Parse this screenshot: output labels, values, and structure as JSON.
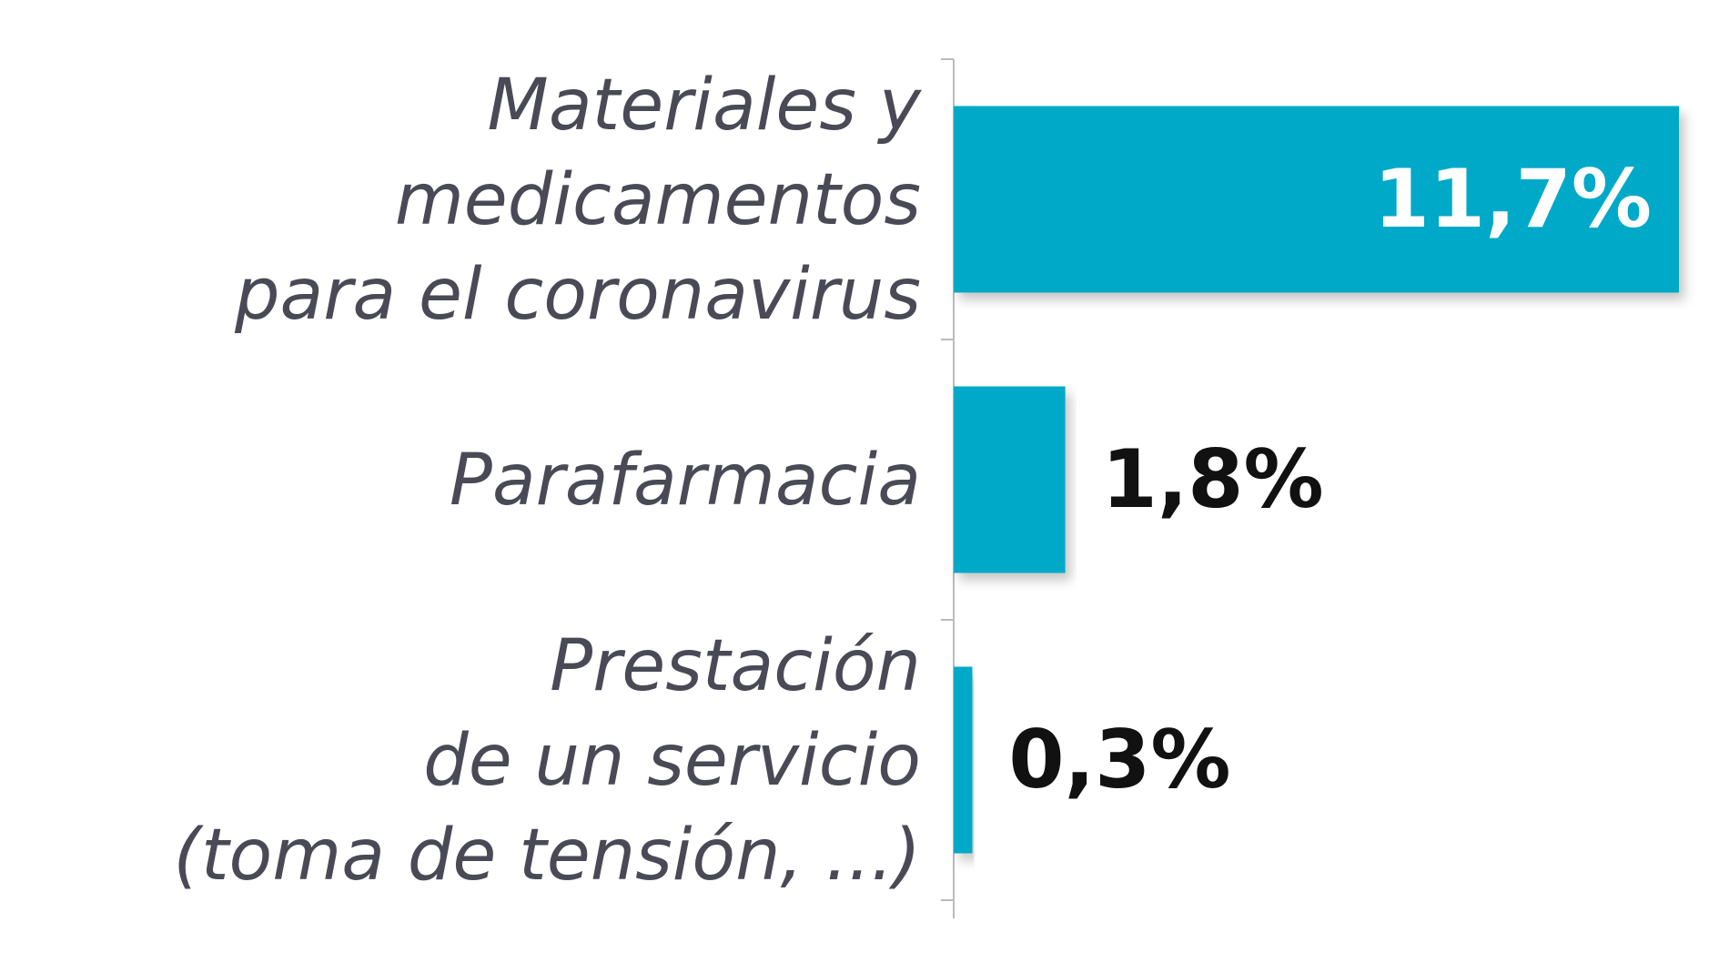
{
  "chart_data": {
    "type": "bar",
    "orientation": "horizontal",
    "categories": [
      [
        "Materiales y",
        "medicamentos",
        "para el coronavirus"
      ],
      [
        "Parafarmacia"
      ],
      [
        "Prestación",
        "de un servicio",
        "(toma de tensión, ...)"
      ]
    ],
    "values": [
      11.7,
      1.8,
      0.3
    ],
    "value_labels": [
      "11,7%",
      "1,8%",
      "0,3%"
    ],
    "xlim": [
      0,
      11.7
    ],
    "grid": false,
    "legend": "none",
    "colors": {
      "bar": "#00a9c8",
      "axis": "#bbbbbb",
      "label_text": "#4a4a56",
      "value_text": "#111111",
      "value_text_inside": "#ffffff"
    }
  }
}
